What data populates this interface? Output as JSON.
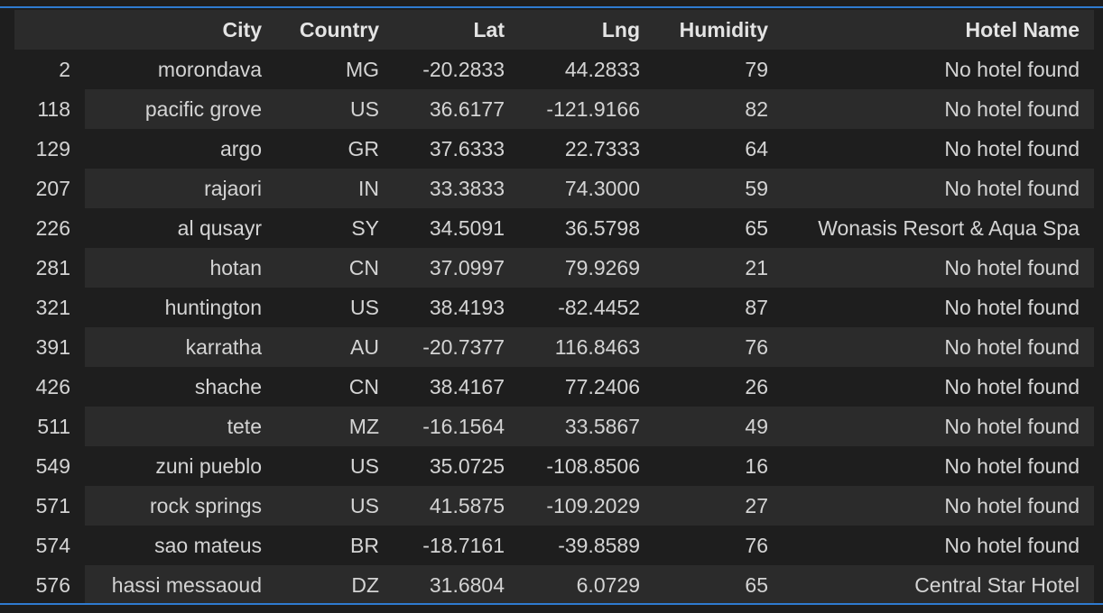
{
  "table": {
    "columns": [
      "",
      "City",
      "Country",
      "Lat",
      "Lng",
      "Humidity",
      "Hotel Name"
    ],
    "rows": [
      [
        "2",
        "morondava",
        "MG",
        "-20.2833",
        "44.2833",
        "79",
        "No hotel found"
      ],
      [
        "118",
        "pacific grove",
        "US",
        "36.6177",
        "-121.9166",
        "82",
        "No hotel found"
      ],
      [
        "129",
        "argo",
        "GR",
        "37.6333",
        "22.7333",
        "64",
        "No hotel found"
      ],
      [
        "207",
        "rajaori",
        "IN",
        "33.3833",
        "74.3000",
        "59",
        "No hotel found"
      ],
      [
        "226",
        "al qusayr",
        "SY",
        "34.5091",
        "36.5798",
        "65",
        "Wonasis Resort & Aqua Spa"
      ],
      [
        "281",
        "hotan",
        "CN",
        "37.0997",
        "79.9269",
        "21",
        "No hotel found"
      ],
      [
        "321",
        "huntington",
        "US",
        "38.4193",
        "-82.4452",
        "87",
        "No hotel found"
      ],
      [
        "391",
        "karratha",
        "AU",
        "-20.7377",
        "116.8463",
        "76",
        "No hotel found"
      ],
      [
        "426",
        "shache",
        "CN",
        "38.4167",
        "77.2406",
        "26",
        "No hotel found"
      ],
      [
        "511",
        "tete",
        "MZ",
        "-16.1564",
        "33.5867",
        "49",
        "No hotel found"
      ],
      [
        "549",
        "zuni pueblo",
        "US",
        "35.0725",
        "-108.8506",
        "16",
        "No hotel found"
      ],
      [
        "571",
        "rock springs",
        "US",
        "41.5875",
        "-109.2029",
        "27",
        "No hotel found"
      ],
      [
        "574",
        "sao mateus",
        "BR",
        "-18.7161",
        "-39.8589",
        "76",
        "No hotel found"
      ],
      [
        "576",
        "hassi messaoud",
        "DZ",
        "31.6804",
        "6.0729",
        "65",
        "Central Star Hotel"
      ]
    ]
  },
  "colors": {
    "background": "#1e1e1e",
    "stripe": "#2b2b2b",
    "text": "#d4d4d4",
    "focus_border": "#2f7bd0"
  }
}
